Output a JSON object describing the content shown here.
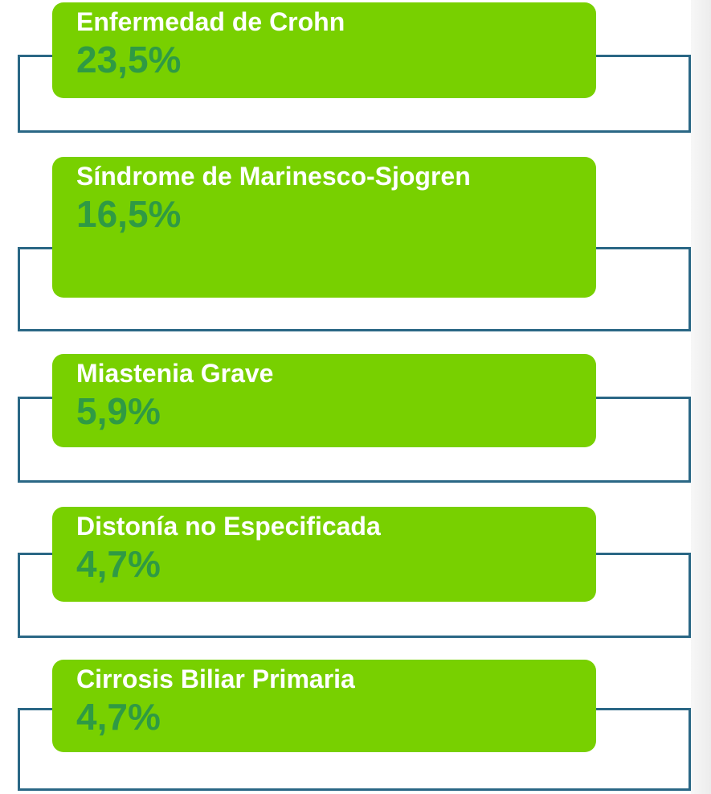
{
  "items": [
    {
      "label": "Enfermedad de Crohn",
      "value": "23,5%"
    },
    {
      "label": "Síndrome de Marinesco-Sjogren",
      "value": "16,5%"
    },
    {
      "label": "Miastenia Grave",
      "value": "5,9%"
    },
    {
      "label": "Distonía no Especificada",
      "value": "4,7%"
    },
    {
      "label": "Cirrosis Biliar Primaria",
      "value": "4,7%"
    }
  ]
}
